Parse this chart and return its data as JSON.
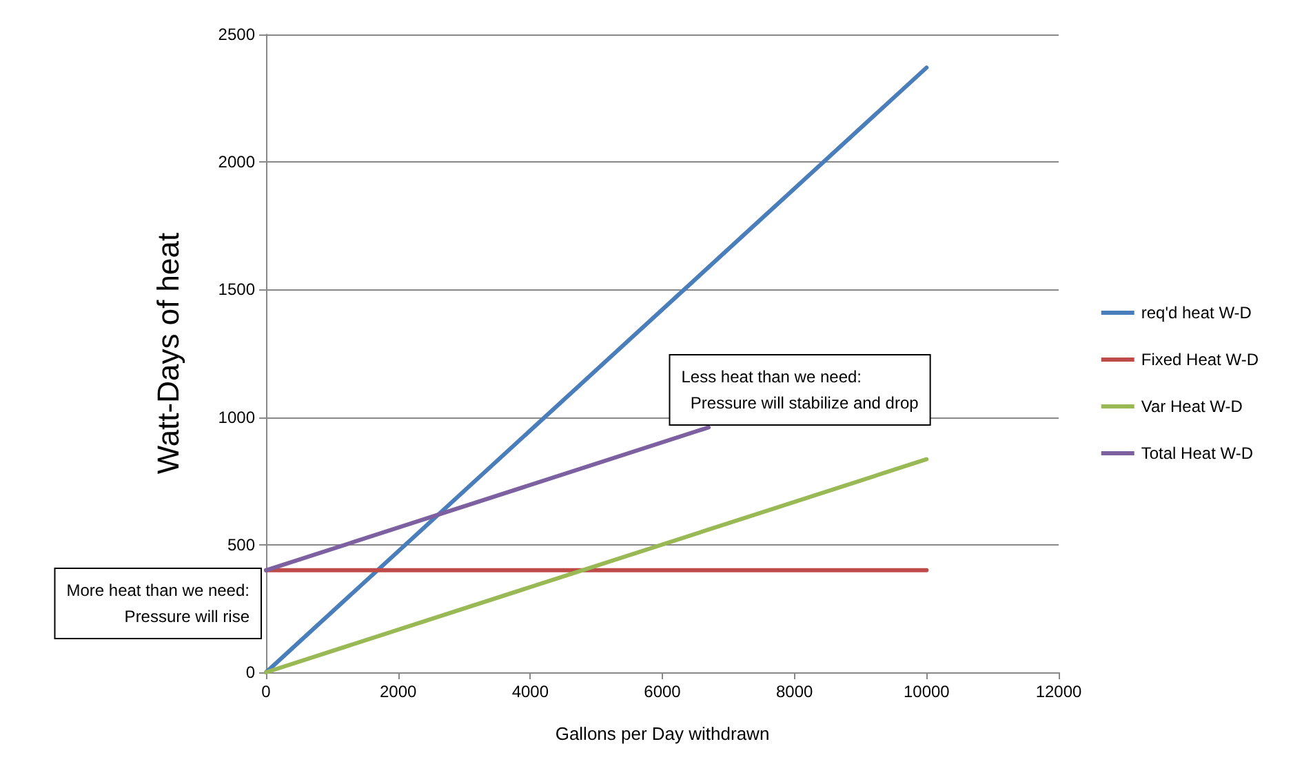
{
  "chart_data": {
    "type": "line",
    "xlabel": "Gallons per Day withdrawn",
    "ylabel": "Watt-Days of heat",
    "xlim": [
      0,
      12000
    ],
    "xticks": [
      0,
      2000,
      4000,
      6000,
      8000,
      10000,
      12000
    ],
    "ylim": [
      0,
      2500
    ],
    "yticks": [
      0,
      500,
      1000,
      1500,
      2000,
      2500
    ],
    "grid": "y",
    "legend": "right",
    "marker": "none",
    "line_style": "solid",
    "series": [
      {
        "name": "req'd heat W-D",
        "color": "#4a7ebb",
        "x": [
          0,
          10000
        ],
        "values": [
          0,
          2370
        ]
      },
      {
        "name": "Fixed Heat W-D",
        "color": "#be4b48",
        "x": [
          0,
          10000
        ],
        "values": [
          400,
          400
        ]
      },
      {
        "name": "Var Heat W-D",
        "color": "#98b954",
        "x": [
          0,
          10000
        ],
        "values": [
          0,
          835
        ]
      },
      {
        "name": "Total Heat W-D",
        "color": "#7d60a0",
        "x": [
          0,
          6700
        ],
        "values": [
          400,
          960
        ]
      }
    ],
    "annotations": [
      "Less heat than we need:\n  Pressure will stabilize and drop",
      "More heat than we need:\n  Pressure will rise"
    ]
  }
}
